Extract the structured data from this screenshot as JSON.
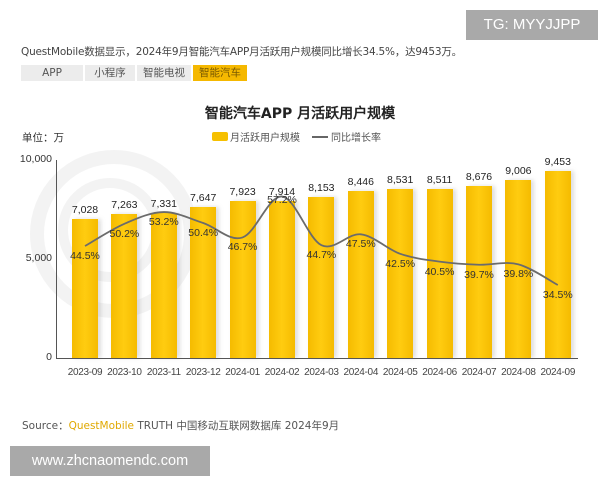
{
  "watermarks": {
    "top_right": "TG: MYYJJPP",
    "bottom_left": "www.zhcnaomendc.com"
  },
  "headline": "QuestMobile数据显示，2024年9月智能汽车APP月活跃用户规模同比增长34.5%，达9453万。",
  "tabs": [
    {
      "label": "APP",
      "active": false
    },
    {
      "label": "小程序",
      "active": false
    },
    {
      "label": "智能电视",
      "active": false
    },
    {
      "label": "智能汽车",
      "active": true
    }
  ],
  "unit_label": "单位：万",
  "source": {
    "prefix": "Source：",
    "brand": "QuestMobile",
    "rest": " TRUTH 中国移动互联网数据库 2024年9月"
  },
  "colors": {
    "bar": "#f6c000",
    "line": "#6b6b6b",
    "active_tab": "#f5b800"
  },
  "chart_data": {
    "type": "bar",
    "title": "智能汽车APP 月活跃用户规模",
    "xlabel": "",
    "ylabel": "单位：万",
    "ylim": [
      0,
      10000
    ],
    "yticks": [
      "0",
      "5,000",
      "10,000"
    ],
    "grid": false,
    "legend_position": "top",
    "categories": [
      "2023-09",
      "2023-10",
      "2023-11",
      "2023-12",
      "2024-01",
      "2024-02",
      "2024-03",
      "2024-04",
      "2024-05",
      "2024-06",
      "2024-07",
      "2024-08",
      "2024-09"
    ],
    "series": [
      {
        "name": "月活跃用户规模",
        "type": "bar",
        "values": [
          7028,
          7263,
          7331,
          7647,
          7923,
          7914,
          8153,
          8446,
          8531,
          8511,
          8676,
          9006,
          9453
        ],
        "labels": [
          "7,028",
          "7,263",
          "7,331",
          "7,647",
          "7,923",
          "7,914",
          "8,153",
          "8,446",
          "8,531",
          "8,511",
          "8,676",
          "9,006",
          "9,453"
        ]
      },
      {
        "name": "同比增长率",
        "type": "line",
        "values": [
          44.5,
          50.2,
          53.2,
          50.4,
          46.7,
          57.2,
          44.7,
          47.5,
          42.5,
          40.5,
          39.7,
          39.8,
          34.5
        ],
        "labels": [
          "44.5%",
          "50.2%",
          "53.2%",
          "50.4%",
          "46.7%",
          "57.2%",
          "44.7%",
          "47.5%",
          "42.5%",
          "40.5%",
          "39.7%",
          "39.8%",
          "34.5%"
        ]
      }
    ]
  }
}
